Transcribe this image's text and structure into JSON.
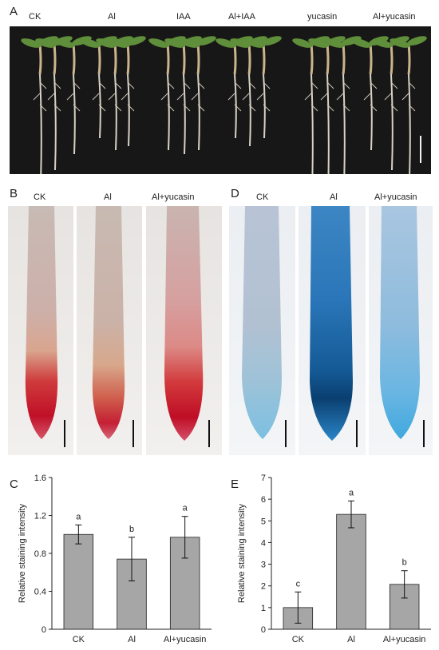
{
  "panelA": {
    "letter": "A",
    "labels": [
      "CK",
      "Al",
      "IAA",
      "Al+IAA",
      "yucasin",
      "Al+yucasin"
    ]
  },
  "panelB": {
    "letter": "B",
    "labels": [
      "CK",
      "Al",
      "Al+yucasin"
    ]
  },
  "panelD": {
    "letter": "D",
    "labels": [
      "CK",
      "Al",
      "Al+yucasin"
    ]
  },
  "chart_data": [
    {
      "panel": "C",
      "type": "bar",
      "categories": [
        "CK",
        "Al",
        "Al+yucasin"
      ],
      "values": [
        1.0,
        0.74,
        0.97
      ],
      "errors": [
        0.1,
        0.23,
        0.22
      ],
      "significance": [
        "a",
        "b",
        "a"
      ],
      "ylabel": "Relative staining intensity",
      "ylim": [
        0,
        1.6
      ],
      "yticks": [
        "0",
        "0.4",
        "0.8",
        "1.2",
        "1.6"
      ],
      "bar_color": "#a6a6a6",
      "grid": false
    },
    {
      "panel": "E",
      "type": "bar",
      "categories": [
        "CK",
        "Al",
        "Al+yucasin"
      ],
      "values": [
        1.0,
        5.3,
        2.07
      ],
      "errors": [
        0.72,
        0.62,
        0.63
      ],
      "significance": [
        "c",
        "a",
        "b"
      ],
      "ylabel": "Relative staining intensity",
      "ylim": [
        0,
        7
      ],
      "yticks": [
        "0",
        "1",
        "2",
        "3",
        "4",
        "5",
        "6",
        "7"
      ],
      "bar_color": "#a6a6a6",
      "grid": false
    }
  ]
}
